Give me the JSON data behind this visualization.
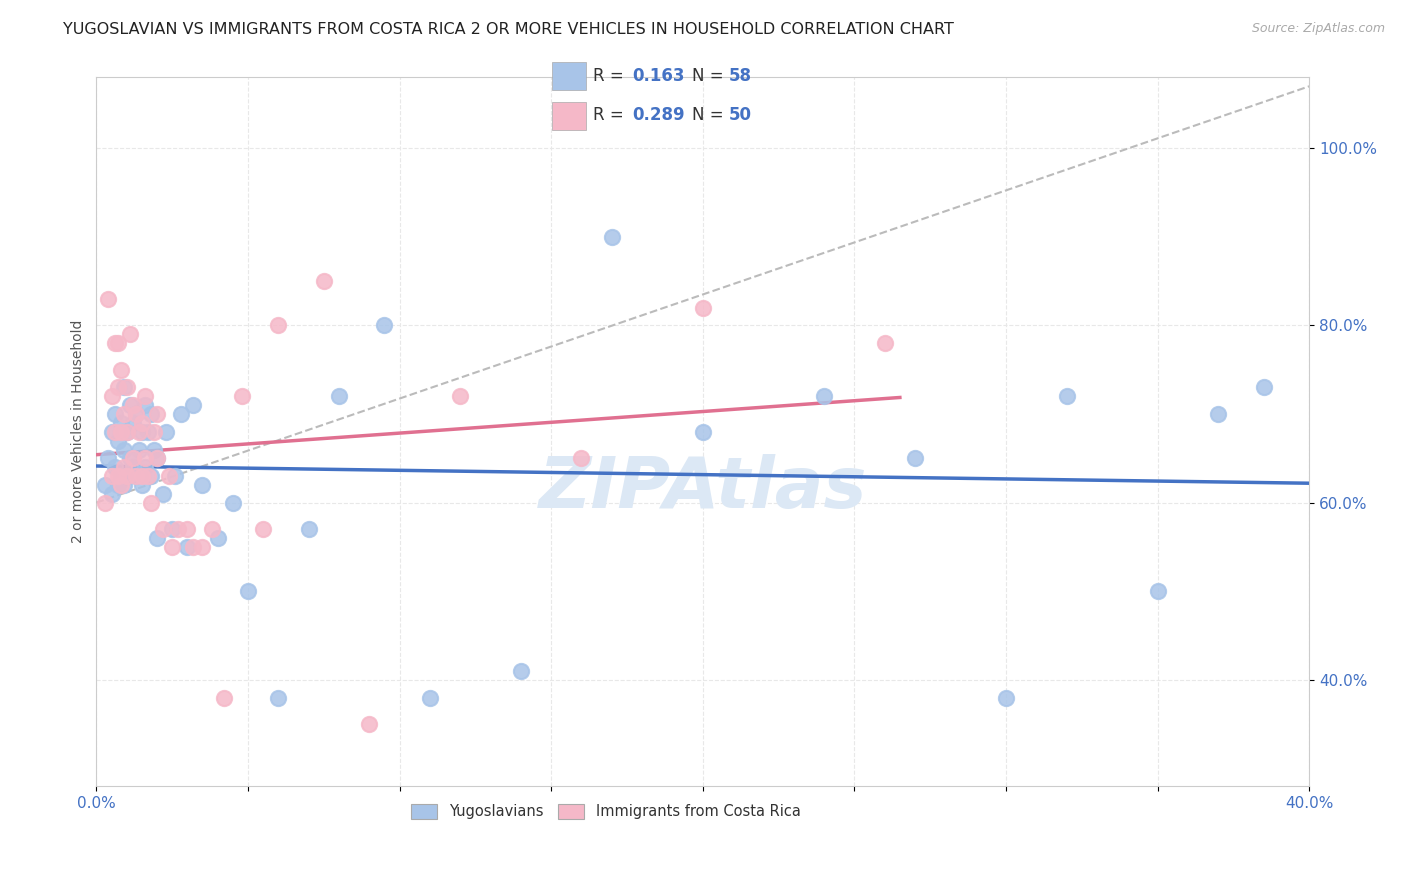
{
  "title": "YUGOSLAVIAN VS IMMIGRANTS FROM COSTA RICA 2 OR MORE VEHICLES IN HOUSEHOLD CORRELATION CHART",
  "source": "Source: ZipAtlas.com",
  "ylabel": "2 or more Vehicles in Household",
  "xlim": [
    0.0,
    0.4
  ],
  "ylim": [
    0.28,
    1.08
  ],
  "xticks": [
    0.0,
    0.05,
    0.1,
    0.15,
    0.2,
    0.25,
    0.3,
    0.35,
    0.4
  ],
  "xtick_labels_show": [
    "0.0%",
    "",
    "",
    "",
    "",
    "",
    "",
    "",
    "40.0%"
  ],
  "yticks": [
    0.4,
    0.6,
    0.8,
    1.0
  ],
  "ytick_labels": [
    "40.0%",
    "60.0%",
    "80.0%",
    "100.0%"
  ],
  "blue_color": "#a8c4e8",
  "pink_color": "#f5b8c8",
  "blue_line_color": "#4472c4",
  "pink_line_color": "#e07090",
  "gray_dash_color": "#bbbbbb",
  "R_blue": 0.163,
  "N_blue": 58,
  "R_pink": 0.289,
  "N_pink": 50,
  "blue_scatter_x": [
    0.003,
    0.004,
    0.005,
    0.005,
    0.006,
    0.006,
    0.007,
    0.007,
    0.008,
    0.008,
    0.009,
    0.009,
    0.009,
    0.01,
    0.01,
    0.011,
    0.011,
    0.012,
    0.012,
    0.013,
    0.013,
    0.014,
    0.015,
    0.015,
    0.016,
    0.016,
    0.017,
    0.018,
    0.018,
    0.019,
    0.02,
    0.02,
    0.022,
    0.023,
    0.025,
    0.026,
    0.028,
    0.03,
    0.032,
    0.035,
    0.04,
    0.045,
    0.05,
    0.06,
    0.07,
    0.08,
    0.095,
    0.11,
    0.14,
    0.17,
    0.2,
    0.24,
    0.27,
    0.3,
    0.32,
    0.35,
    0.37,
    0.385
  ],
  "blue_scatter_y": [
    0.62,
    0.65,
    0.61,
    0.68,
    0.64,
    0.7,
    0.62,
    0.67,
    0.63,
    0.69,
    0.62,
    0.66,
    0.73,
    0.63,
    0.68,
    0.65,
    0.71,
    0.64,
    0.69,
    0.63,
    0.7,
    0.66,
    0.62,
    0.68,
    0.64,
    0.71,
    0.68,
    0.63,
    0.7,
    0.66,
    0.56,
    0.65,
    0.61,
    0.68,
    0.57,
    0.63,
    0.7,
    0.55,
    0.71,
    0.62,
    0.56,
    0.6,
    0.5,
    0.38,
    0.57,
    0.72,
    0.8,
    0.38,
    0.41,
    0.9,
    0.68,
    0.72,
    0.65,
    0.38,
    0.72,
    0.5,
    0.7,
    0.73
  ],
  "pink_scatter_x": [
    0.003,
    0.004,
    0.005,
    0.005,
    0.006,
    0.006,
    0.007,
    0.007,
    0.007,
    0.008,
    0.008,
    0.008,
    0.009,
    0.009,
    0.01,
    0.01,
    0.01,
    0.011,
    0.012,
    0.012,
    0.013,
    0.013,
    0.014,
    0.015,
    0.015,
    0.016,
    0.016,
    0.017,
    0.018,
    0.019,
    0.02,
    0.02,
    0.022,
    0.024,
    0.025,
    0.027,
    0.03,
    0.032,
    0.035,
    0.038,
    0.042,
    0.048,
    0.055,
    0.06,
    0.075,
    0.09,
    0.12,
    0.16,
    0.2,
    0.26
  ],
  "pink_scatter_y": [
    0.6,
    0.83,
    0.72,
    0.63,
    0.78,
    0.68,
    0.73,
    0.78,
    0.63,
    0.62,
    0.68,
    0.75,
    0.64,
    0.7,
    0.63,
    0.68,
    0.73,
    0.79,
    0.65,
    0.71,
    0.63,
    0.7,
    0.68,
    0.63,
    0.69,
    0.65,
    0.72,
    0.63,
    0.6,
    0.68,
    0.65,
    0.7,
    0.57,
    0.63,
    0.55,
    0.57,
    0.57,
    0.55,
    0.55,
    0.57,
    0.38,
    0.72,
    0.57,
    0.8,
    0.85,
    0.35,
    0.72,
    0.65,
    0.82,
    0.78
  ],
  "background_color": "#ffffff",
  "grid_color": "#e8e8e8",
  "title_fontsize": 11.5,
  "axis_label_fontsize": 10,
  "tick_fontsize": 11,
  "watermark_text": "ZIPAtlas",
  "watermark_color": "#dce8f5",
  "legend_top_labels": [
    "Yugoslavians",
    "Immigrants from Costa Rica"
  ],
  "blue_trend_xlim": [
    0.0,
    0.4
  ],
  "pink_trend_xlim": [
    0.0,
    0.265
  ]
}
